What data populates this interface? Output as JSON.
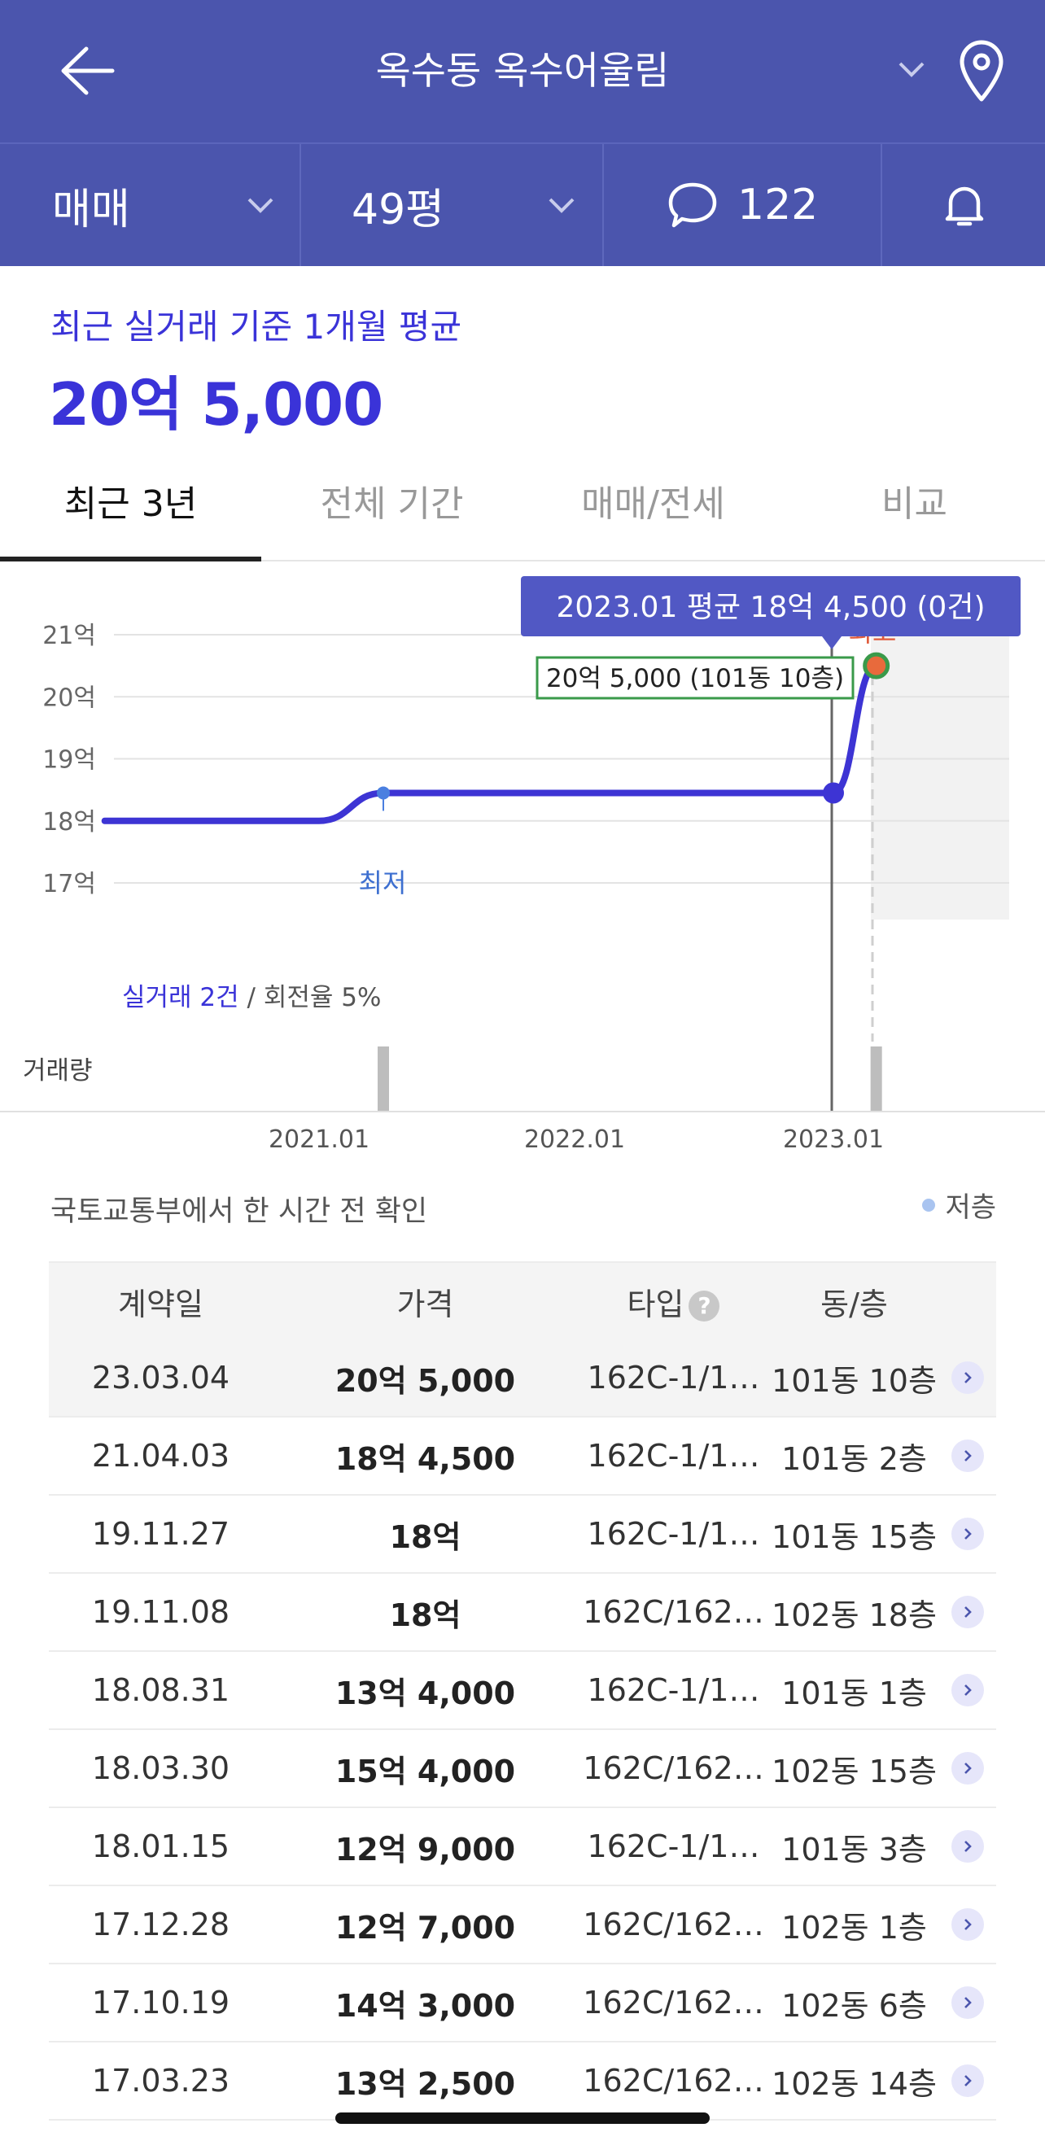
{
  "header": {
    "title": "옥수동 옥수어울림",
    "back_icon": "arrow-left-icon",
    "location_icon": "map-pin-icon"
  },
  "filters": {
    "trade_type": "매매",
    "size": "49평",
    "comments": "122"
  },
  "summary": {
    "label": "최근 실거래 기준 1개월 평균",
    "value": "20억 5,000"
  },
  "tabs": [
    "최근 3년",
    "전체 기간",
    "매매/전세",
    "비교"
  ],
  "chart": {
    "tooltip": "2023.01 평균 18억 4,500 (0건)",
    "point_label": "20억 5,000 (101동 10층)",
    "high_label": "최고",
    "low_label": "최저",
    "stats_count": "실거래 2건",
    "stats_sep": " / ",
    "stats_rate": "회전율 5%",
    "volume_label": "거래량",
    "y_ticks": [
      "21억",
      "20억",
      "19억",
      "18억",
      "17억"
    ],
    "x_ticks": [
      "2021.01",
      "2022.01",
      "2023.01"
    ],
    "line_color": "#3d34d4"
  },
  "chart_data": {
    "type": "line",
    "y_unit": "억",
    "ylim": [
      17,
      21
    ],
    "y_tick_values": [
      21,
      20,
      19,
      18,
      17
    ],
    "series": [
      {
        "values": [
          {
            "x": "2020.03",
            "y": 18.0
          },
          {
            "x": "2021.01",
            "y": 18.0
          },
          {
            "x": "2021.04",
            "y": 18.45
          },
          {
            "x": "2023.01",
            "y": 18.45
          },
          {
            "x": "2023.03",
            "y": 20.5
          }
        ]
      }
    ],
    "volume": [
      {
        "x": "2021.04",
        "count": 1
      },
      {
        "x": "2023.03",
        "count": 1
      }
    ]
  },
  "source": "국토교통부에서 한 시간 전 확인",
  "legend": "저층",
  "table": {
    "headers": [
      "계약일",
      "가격",
      "타입",
      "동/층"
    ],
    "rows": [
      {
        "date": "23.03.04",
        "price": "20억 5,000",
        "type": "162C-1/1…",
        "unit": "101동 10층"
      },
      {
        "date": "21.04.03",
        "price": "18억 4,500",
        "type": "162C-1/1…",
        "unit": "101동 2층"
      },
      {
        "date": "19.11.27",
        "price": "18억",
        "type": "162C-1/1…",
        "unit": "101동 15층"
      },
      {
        "date": "19.11.08",
        "price": "18억",
        "type": "162C/162…",
        "unit": "102동 18층"
      },
      {
        "date": "18.08.31",
        "price": "13억 4,000",
        "type": "162C-1/1…",
        "unit": "101동 1층"
      },
      {
        "date": "18.03.30",
        "price": "15억 4,000",
        "type": "162C/162…",
        "unit": "102동 15층"
      },
      {
        "date": "18.01.15",
        "price": "12억 9,000",
        "type": "162C-1/1…",
        "unit": "101동 3층"
      },
      {
        "date": "17.12.28",
        "price": "12억 7,000",
        "type": "162C/162…",
        "unit": "102동 1층"
      },
      {
        "date": "17.10.19",
        "price": "14억 3,000",
        "type": "162C/162…",
        "unit": "102동 6층"
      },
      {
        "date": "17.03.23",
        "price": "13억 2,500",
        "type": "162C/162…",
        "unit": "102동 14층"
      }
    ]
  }
}
